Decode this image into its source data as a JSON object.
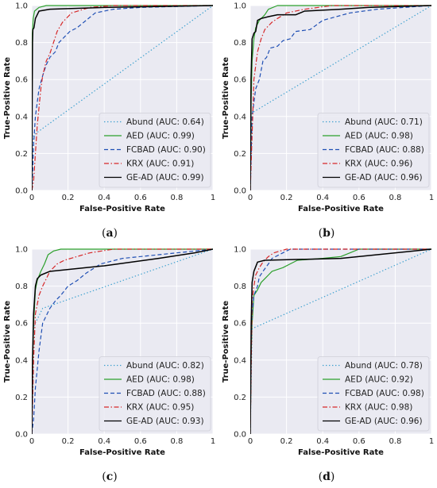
{
  "chart_data": [
    {
      "type": "line",
      "caption_open": "(",
      "caption_letter": "a",
      "caption_close": ")",
      "xlabel": "False-Positive Rate",
      "ylabel": "True-Positive Rate",
      "xlim": [
        0,
        1
      ],
      "ylim": [
        0,
        1
      ],
      "xticks": [
        "0",
        "0.2",
        "0.4",
        "0.6",
        "0.8",
        "1"
      ],
      "yticks": [
        "0.0",
        "0.2",
        "0.4",
        "0.6",
        "0.8",
        "1.0"
      ],
      "grid": true,
      "legend_position": "bottom-right",
      "series": [
        {
          "name": "Abund (AUC: 0.64)",
          "color": "#3ca0cf",
          "dash": "dotted",
          "points": [
            [
              0,
              0
            ],
            [
              0.01,
              0.3
            ],
            [
              1,
              1
            ]
          ]
        },
        {
          "name": "AED (AUC: 0.99)",
          "color": "#2ca02c",
          "dash": "solid",
          "points": [
            [
              0,
              0
            ],
            [
              0.003,
              0.85
            ],
            [
              0.008,
              0.93
            ],
            [
              0.015,
              0.97
            ],
            [
              0.04,
              0.99
            ],
            [
              0.08,
              1.0
            ],
            [
              1,
              1
            ]
          ]
        },
        {
          "name": "FCBAD (AUC: 0.90)",
          "color": "#1f4fb4",
          "dash": "dashed",
          "points": [
            [
              0,
              0
            ],
            [
              0.005,
              0.1
            ],
            [
              0.01,
              0.25
            ],
            [
              0.02,
              0.4
            ],
            [
              0.04,
              0.55
            ],
            [
              0.06,
              0.62
            ],
            [
              0.08,
              0.68
            ],
            [
              0.1,
              0.72
            ],
            [
              0.13,
              0.75
            ],
            [
              0.15,
              0.8
            ],
            [
              0.19,
              0.84
            ],
            [
              0.21,
              0.86
            ],
            [
              0.25,
              0.88
            ],
            [
              0.3,
              0.92
            ],
            [
              0.35,
              0.96
            ],
            [
              0.45,
              0.98
            ],
            [
              0.6,
              0.99
            ],
            [
              1,
              1
            ]
          ]
        },
        {
          "name": "KRX (AUC: 0.91)",
          "color": "#d62728",
          "dash": "dashdot",
          "points": [
            [
              0,
              0
            ],
            [
              0.01,
              0.05
            ],
            [
              0.02,
              0.2
            ],
            [
              0.03,
              0.35
            ],
            [
              0.05,
              0.55
            ],
            [
              0.06,
              0.62
            ],
            [
              0.08,
              0.7
            ],
            [
              0.1,
              0.74
            ],
            [
              0.12,
              0.8
            ],
            [
              0.14,
              0.86
            ],
            [
              0.17,
              0.91
            ],
            [
              0.22,
              0.96
            ],
            [
              0.32,
              0.99
            ],
            [
              0.45,
              1.0
            ],
            [
              1,
              1
            ]
          ]
        },
        {
          "name": "GE-AD (AUC: 0.99)",
          "color": "#000000",
          "dash": "solid",
          "points": [
            [
              0,
              0
            ],
            [
              0.002,
              0.45
            ],
            [
              0.004,
              0.8
            ],
            [
              0.006,
              0.87
            ],
            [
              0.012,
              0.88
            ],
            [
              0.02,
              0.93
            ],
            [
              0.04,
              0.97
            ],
            [
              0.1,
              0.98
            ],
            [
              0.4,
              0.99
            ],
            [
              1,
              1
            ]
          ]
        }
      ]
    },
    {
      "type": "line",
      "caption_open": "(",
      "caption_letter": "b",
      "caption_close": ")",
      "xlabel": "False-Positive Rate",
      "ylabel": "True-Positive Rate",
      "xlim": [
        0,
        1
      ],
      "ylim": [
        0,
        1
      ],
      "xticks": [
        "0",
        "0.2",
        "0.4",
        "0.6",
        "0.8",
        "1"
      ],
      "yticks": [
        "0.0",
        "0.2",
        "0.4",
        "0.6",
        "0.8",
        "1.0"
      ],
      "grid": true,
      "legend_position": "bottom-right",
      "series": [
        {
          "name": "Abund (AUC: 0.71)",
          "color": "#3ca0cf",
          "dash": "dotted",
          "points": [
            [
              0,
              0
            ],
            [
              0.01,
              0.42
            ],
            [
              1,
              1
            ]
          ]
        },
        {
          "name": "AED (AUC: 0.98)",
          "color": "#2ca02c",
          "dash": "solid",
          "points": [
            [
              0,
              0
            ],
            [
              0.005,
              0.5
            ],
            [
              0.01,
              0.7
            ],
            [
              0.02,
              0.82
            ],
            [
              0.03,
              0.88
            ],
            [
              0.05,
              0.92
            ],
            [
              0.08,
              0.95
            ],
            [
              0.1,
              0.98
            ],
            [
              0.15,
              1.0
            ],
            [
              1,
              1
            ]
          ]
        },
        {
          "name": "FCBAD (AUC: 0.88)",
          "color": "#1f4fb4",
          "dash": "dashed",
          "points": [
            [
              0,
              0
            ],
            [
              0.01,
              0.4
            ],
            [
              0.03,
              0.55
            ],
            [
              0.05,
              0.6
            ],
            [
              0.07,
              0.7
            ],
            [
              0.09,
              0.72
            ],
            [
              0.11,
              0.77
            ],
            [
              0.15,
              0.78
            ],
            [
              0.18,
              0.81
            ],
            [
              0.22,
              0.82
            ],
            [
              0.25,
              0.86
            ],
            [
              0.33,
              0.87
            ],
            [
              0.4,
              0.92
            ],
            [
              0.55,
              0.96
            ],
            [
              0.7,
              0.98
            ],
            [
              1,
              1
            ]
          ]
        },
        {
          "name": "KRX (AUC: 0.96)",
          "color": "#d62728",
          "dash": "dashdot",
          "points": [
            [
              0,
              0
            ],
            [
              0.01,
              0.3
            ],
            [
              0.02,
              0.6
            ],
            [
              0.04,
              0.75
            ],
            [
              0.06,
              0.82
            ],
            [
              0.08,
              0.87
            ],
            [
              0.12,
              0.91
            ],
            [
              0.15,
              0.93
            ],
            [
              0.2,
              0.96
            ],
            [
              0.3,
              0.98
            ],
            [
              0.45,
              1.0
            ],
            [
              1,
              1
            ]
          ]
        },
        {
          "name": "GE-AD (AUC: 0.96)",
          "color": "#000000",
          "dash": "solid",
          "points": [
            [
              0,
              0
            ],
            [
              0.004,
              0.6
            ],
            [
              0.01,
              0.82
            ],
            [
              0.02,
              0.85
            ],
            [
              0.03,
              0.86
            ],
            [
              0.04,
              0.92
            ],
            [
              0.06,
              0.93
            ],
            [
              0.1,
              0.94
            ],
            [
              0.15,
              0.95
            ],
            [
              0.25,
              0.95
            ],
            [
              0.3,
              0.97
            ],
            [
              0.5,
              0.98
            ],
            [
              0.65,
              0.99
            ],
            [
              1,
              1
            ]
          ]
        }
      ]
    },
    {
      "type": "line",
      "caption_open": "(",
      "caption_letter": "c",
      "caption_close": ")",
      "xlabel": "False-Positive Rate",
      "ylabel": "True-Positive Rate",
      "xlim": [
        0,
        1
      ],
      "ylim": [
        0,
        1
      ],
      "xticks": [
        "0",
        "0.2",
        "0.4",
        "0.6",
        "0.8",
        "1"
      ],
      "yticks": [
        "0.0",
        "0.2",
        "0.4",
        "0.6",
        "0.8",
        "1.0"
      ],
      "grid": true,
      "legend_position": "bottom-right",
      "series": [
        {
          "name": "Abund (AUC: 0.82)",
          "color": "#3ca0cf",
          "dash": "dotted",
          "points": [
            [
              0,
              0
            ],
            [
              0.01,
              0.58
            ],
            [
              0.06,
              0.68
            ],
            [
              1,
              1
            ]
          ]
        },
        {
          "name": "AED (AUC: 0.98)",
          "color": "#2ca02c",
          "dash": "solid",
          "points": [
            [
              0,
              0
            ],
            [
              0.005,
              0.4
            ],
            [
              0.01,
              0.6
            ],
            [
              0.02,
              0.78
            ],
            [
              0.03,
              0.83
            ],
            [
              0.05,
              0.88
            ],
            [
              0.07,
              0.92
            ],
            [
              0.09,
              0.97
            ],
            [
              0.12,
              0.99
            ],
            [
              0.16,
              1.0
            ],
            [
              1,
              1
            ]
          ]
        },
        {
          "name": "FCBAD (AUC: 0.88)",
          "color": "#1f4fb4",
          "dash": "dashed",
          "points": [
            [
              0,
              0
            ],
            [
              0.01,
              0.08
            ],
            [
              0.02,
              0.25
            ],
            [
              0.04,
              0.45
            ],
            [
              0.06,
              0.6
            ],
            [
              0.08,
              0.64
            ],
            [
              0.1,
              0.68
            ],
            [
              0.13,
              0.72
            ],
            [
              0.16,
              0.75
            ],
            [
              0.2,
              0.8
            ],
            [
              0.25,
              0.83
            ],
            [
              0.3,
              0.87
            ],
            [
              0.38,
              0.92
            ],
            [
              0.5,
              0.95
            ],
            [
              0.7,
              0.97
            ],
            [
              0.9,
              0.99
            ],
            [
              1,
              1
            ]
          ]
        },
        {
          "name": "KRX (AUC: 0.95)",
          "color": "#d62728",
          "dash": "dashdot",
          "points": [
            [
              0,
              0
            ],
            [
              0.01,
              0.4
            ],
            [
              0.02,
              0.65
            ],
            [
              0.04,
              0.75
            ],
            [
              0.06,
              0.8
            ],
            [
              0.08,
              0.84
            ],
            [
              0.1,
              0.88
            ],
            [
              0.14,
              0.92
            ],
            [
              0.18,
              0.94
            ],
            [
              0.25,
              0.96
            ],
            [
              0.32,
              0.98
            ],
            [
              0.45,
              1.0
            ],
            [
              1,
              1
            ]
          ]
        },
        {
          "name": "GE-AD (AUC: 0.93)",
          "color": "#000000",
          "dash": "solid",
          "points": [
            [
              0,
              0
            ],
            [
              0.004,
              0.4
            ],
            [
              0.01,
              0.65
            ],
            [
              0.02,
              0.8
            ],
            [
              0.03,
              0.84
            ],
            [
              0.05,
              0.86
            ],
            [
              0.1,
              0.88
            ],
            [
              0.4,
              0.91
            ],
            [
              0.7,
              0.95
            ],
            [
              0.9,
              0.98
            ],
            [
              1,
              1
            ]
          ]
        }
      ]
    },
    {
      "type": "line",
      "caption_open": "(",
      "caption_letter": "d",
      "caption_close": ")",
      "xlabel": "False-Positive Rate",
      "ylabel": "True-Positive Rate",
      "xlim": [
        0,
        1
      ],
      "ylim": [
        0,
        1
      ],
      "xticks": [
        "0",
        "0.2",
        "0.4",
        "0.6",
        "0.8",
        "1"
      ],
      "yticks": [
        "0.0",
        "0.2",
        "0.4",
        "0.6",
        "0.8",
        "1.0"
      ],
      "grid": true,
      "legend_position": "bottom-right",
      "series": [
        {
          "name": "Abund (AUC: 0.78)",
          "color": "#3ca0cf",
          "dash": "dotted",
          "points": [
            [
              0,
              0
            ],
            [
              0.01,
              0.57
            ],
            [
              1,
              1
            ]
          ]
        },
        {
          "name": "AED (AUC: 0.92)",
          "color": "#2ca02c",
          "dash": "solid",
          "points": [
            [
              0,
              0
            ],
            [
              0.005,
              0.45
            ],
            [
              0.01,
              0.6
            ],
            [
              0.02,
              0.75
            ],
            [
              0.04,
              0.78
            ],
            [
              0.06,
              0.82
            ],
            [
              0.08,
              0.84
            ],
            [
              0.1,
              0.86
            ],
            [
              0.12,
              0.88
            ],
            [
              0.18,
              0.9
            ],
            [
              0.22,
              0.92
            ],
            [
              0.26,
              0.94
            ],
            [
              0.4,
              0.95
            ],
            [
              0.5,
              0.96
            ],
            [
              0.55,
              0.98
            ],
            [
              0.6,
              1.0
            ],
            [
              1,
              1
            ]
          ]
        },
        {
          "name": "FCBAD (AUC: 0.98)",
          "color": "#1f4fb4",
          "dash": "dashed",
          "points": [
            [
              0,
              0
            ],
            [
              0.005,
              0.5
            ],
            [
              0.01,
              0.65
            ],
            [
              0.02,
              0.75
            ],
            [
              0.04,
              0.8
            ],
            [
              0.05,
              0.85
            ],
            [
              0.07,
              0.88
            ],
            [
              0.1,
              0.92
            ],
            [
              0.12,
              0.95
            ],
            [
              0.16,
              0.97
            ],
            [
              0.22,
              1.0
            ],
            [
              1,
              1
            ]
          ]
        },
        {
          "name": "KRX (AUC: 0.98)",
          "color": "#d62728",
          "dash": "dashdot",
          "points": [
            [
              0,
              0
            ],
            [
              0.01,
              0.72
            ],
            [
              0.02,
              0.8
            ],
            [
              0.03,
              0.86
            ],
            [
              0.05,
              0.9
            ],
            [
              0.07,
              0.93
            ],
            [
              0.1,
              0.96
            ],
            [
              0.13,
              0.98
            ],
            [
              0.2,
              1.0
            ],
            [
              1,
              1
            ]
          ]
        },
        {
          "name": "GE-AD (AUC: 0.96)",
          "color": "#000000",
          "dash": "solid",
          "points": [
            [
              0,
              0
            ],
            [
              0.005,
              0.6
            ],
            [
              0.01,
              0.82
            ],
            [
              0.02,
              0.88
            ],
            [
              0.04,
              0.93
            ],
            [
              0.08,
              0.94
            ],
            [
              0.5,
              0.95
            ],
            [
              0.7,
              0.97
            ],
            [
              0.9,
              0.99
            ],
            [
              1,
              1
            ]
          ]
        }
      ]
    }
  ]
}
